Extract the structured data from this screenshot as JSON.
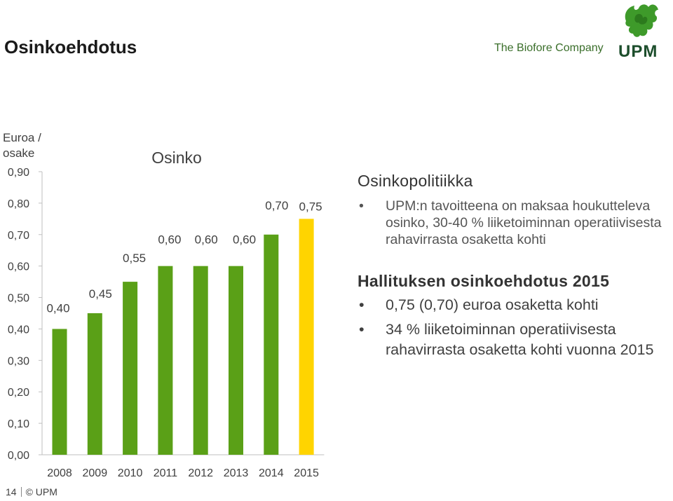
{
  "title": "Osinkoehdotus",
  "logo": {
    "tagline": "The Biofore Company",
    "wordmark": "UPM",
    "icon": "griffin-icon"
  },
  "colors": {
    "bar_green": "#5aa017",
    "bar_highlight": "#ffd400",
    "wordmark": "#1d4e2c"
  },
  "chart_data": {
    "type": "bar",
    "title": "Osinko",
    "ylabel": "Euroa / osake",
    "xlabel": "",
    "categories": [
      "2008",
      "2009",
      "2010",
      "2011",
      "2012",
      "2013",
      "2014",
      "2015"
    ],
    "values": [
      0.4,
      0.45,
      0.55,
      0.6,
      0.6,
      0.6,
      0.7,
      0.75
    ],
    "data_labels": [
      "0,40",
      "0,45",
      "0,55",
      "0,60",
      "0,60",
      "0,60",
      "0,70",
      "0,75"
    ],
    "highlight_index": 7,
    "ylim": [
      0,
      0.9
    ],
    "yticks": [
      0.0,
      0.1,
      0.2,
      0.3,
      0.4,
      0.5,
      0.6,
      0.7,
      0.8,
      0.9
    ],
    "ytick_labels": [
      "0,00",
      "0,10",
      "0,20",
      "0,30",
      "0,40",
      "0,50",
      "0,60",
      "0,70",
      "0,80",
      "0,90"
    ],
    "grid": false,
    "legend": "none"
  },
  "policy": {
    "heading": "Osinkopolitiikka",
    "items": [
      "UPM:n tavoitteena on maksaa houkutteleva osinko, 30-40 % liiketoiminnan operatiivisesta rahavirrasta osaketta kohti"
    ]
  },
  "proposal": {
    "heading": "Hallituksen osinkoehdotus 2015",
    "items": [
      "0,75 (0,70) euroa osaketta kohti",
      "34 % liiketoiminnan operatiivisesta rahavirrasta osaketta kohti vuonna 2015"
    ]
  },
  "footer": {
    "page": "14",
    "copyright": "© UPM"
  }
}
